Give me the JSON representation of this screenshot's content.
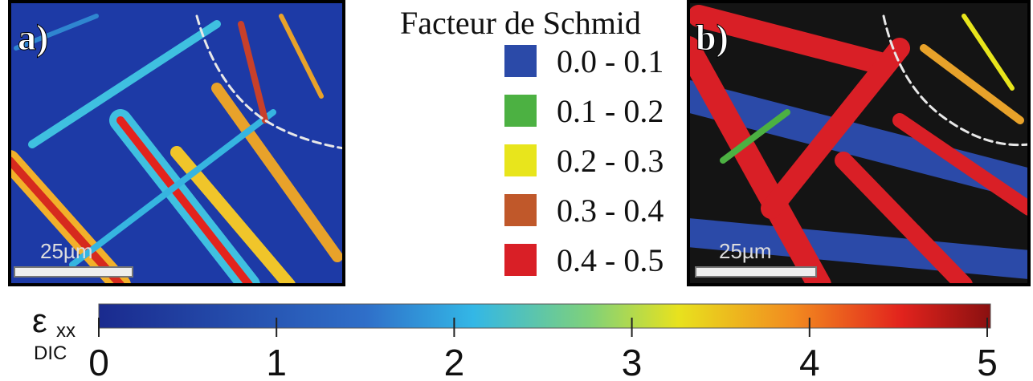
{
  "panels": [
    {
      "label": "a)",
      "scale_bar": "25µm"
    },
    {
      "label": "b)",
      "scale_bar": "25µm"
    }
  ],
  "legend": {
    "title": "Facteur de Schmid",
    "entries": [
      {
        "label": "0.0 - 0.1",
        "color": "#2b4aa8"
      },
      {
        "label": "0.1 - 0.2",
        "color": "#4cb142"
      },
      {
        "label": "0.2 - 0.3",
        "color": "#e8e51c"
      },
      {
        "label": "0.3 - 0.4",
        "color": "#c0582a"
      },
      {
        "label": "0.4 - 0.5",
        "color": "#d91f26"
      }
    ]
  },
  "colorbar": {
    "symbol": "ε",
    "subscript": "xx",
    "sublabel": "DIC",
    "lim": [
      0,
      5
    ],
    "ticks": [
      0,
      1,
      2,
      3,
      4,
      5
    ]
  }
}
